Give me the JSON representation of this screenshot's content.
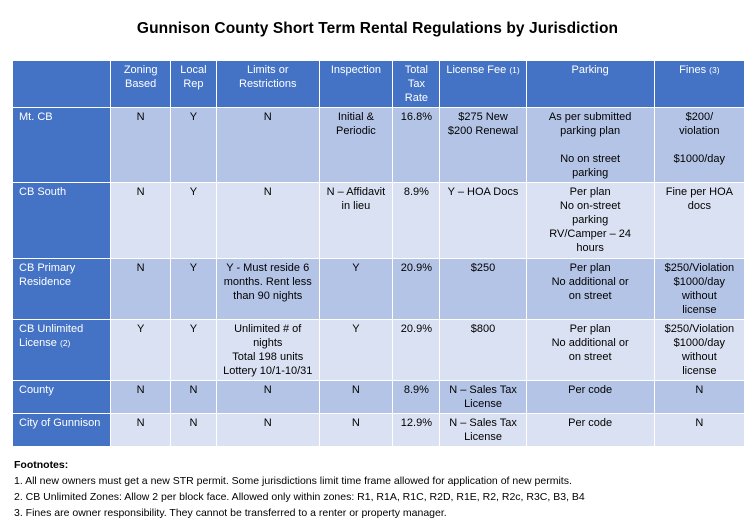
{
  "title": "Gunnison County Short Term Rental Regulations by Jurisdiction",
  "table": {
    "headers": {
      "jurisdiction": "",
      "zoning": [
        "Zoning",
        "Based"
      ],
      "local_rep": [
        "Local",
        "Rep"
      ],
      "limits": [
        "Limits or",
        "Restrictions"
      ],
      "inspection": "Inspection",
      "tax": [
        "Total",
        "Tax",
        "Rate"
      ],
      "license_fee": "License Fee",
      "license_fee_note": "(1)",
      "parking": "Parking",
      "fines": "Fines",
      "fines_note": "(3)"
    },
    "rows": [
      {
        "jurisdiction": "Mt. CB",
        "jurisdiction_note": "",
        "zoning": "N",
        "local_rep": "Y",
        "limits": [
          "N"
        ],
        "inspection": [
          "Initial &",
          "Periodic"
        ],
        "tax": "16.8%",
        "license_fee": [
          "$275 New",
          "$200 Renewal"
        ],
        "parking": [
          "As per submitted",
          "parking plan",
          "",
          "No on street",
          "parking"
        ],
        "fines": [
          "$200/",
          "violation",
          "",
          "$1000/day"
        ]
      },
      {
        "jurisdiction": "CB South",
        "jurisdiction_note": "",
        "zoning": "N",
        "local_rep": "Y",
        "limits": [
          "N"
        ],
        "inspection": [
          "N – Affidavit",
          "in lieu"
        ],
        "tax": "8.9%",
        "license_fee": [
          "Y – HOA Docs"
        ],
        "parking": [
          "Per plan",
          "No on-street",
          "parking",
          "RV/Camper – 24",
          "hours"
        ],
        "fines": [
          "Fine per HOA",
          "docs"
        ]
      },
      {
        "jurisdiction": "CB Primary Residence",
        "jurisdiction_note": "",
        "zoning": "N",
        "local_rep": "Y",
        "limits": [
          "Y - Must reside 6",
          "months.  Rent less",
          "than 90 nights"
        ],
        "inspection": [
          "Y"
        ],
        "tax": "20.9%",
        "license_fee": [
          "$250"
        ],
        "parking": [
          "Per plan",
          "No additional or",
          "on street"
        ],
        "fines": [
          "$250/Violation",
          "$1000/day",
          "without",
          "license"
        ]
      },
      {
        "jurisdiction": "CB Unlimited License",
        "jurisdiction_note": "(2)",
        "zoning": "Y",
        "local_rep": "Y",
        "limits": [
          "Unlimited # of",
          "nights",
          "Total 198 units",
          "Lottery 10/1-10/31"
        ],
        "inspection": [
          "Y"
        ],
        "tax": "20.9%",
        "license_fee": [
          "$800"
        ],
        "parking": [
          "Per plan",
          "No additional or",
          "on street"
        ],
        "fines": [
          "$250/Violation",
          "$1000/day",
          "without",
          "license"
        ]
      },
      {
        "jurisdiction": "County",
        "jurisdiction_note": "",
        "zoning": "N",
        "local_rep": "N",
        "limits": [
          "N"
        ],
        "inspection": [
          "N"
        ],
        "tax": "8.9%",
        "license_fee": [
          "N – Sales Tax",
          "License"
        ],
        "parking": [
          "Per code"
        ],
        "fines": [
          "N"
        ]
      },
      {
        "jurisdiction": "City of Gunnison",
        "jurisdiction_note": "",
        "zoning": "N",
        "local_rep": "N",
        "limits": [
          "N"
        ],
        "inspection": [
          "N"
        ],
        "tax": "12.9%",
        "license_fee": [
          "N – Sales Tax",
          "License"
        ],
        "parking": [
          "Per code"
        ],
        "fines": [
          "N"
        ]
      }
    ]
  },
  "footnotes": {
    "title": "Footnotes:",
    "items": [
      "1.  All new owners must get a new STR permit.  Some jurisdictions limit time frame allowed for application of new permits.",
      "2.  CB Unlimited Zones:  Allow 2 per block face.  Allowed only within zones: R1, R1A, R1C, R2D, R1E, R2, R2c, R3C, B3, B4",
      "3.  Fines are owner responsibility.  They cannot be transferred to a renter or property manager."
    ]
  }
}
